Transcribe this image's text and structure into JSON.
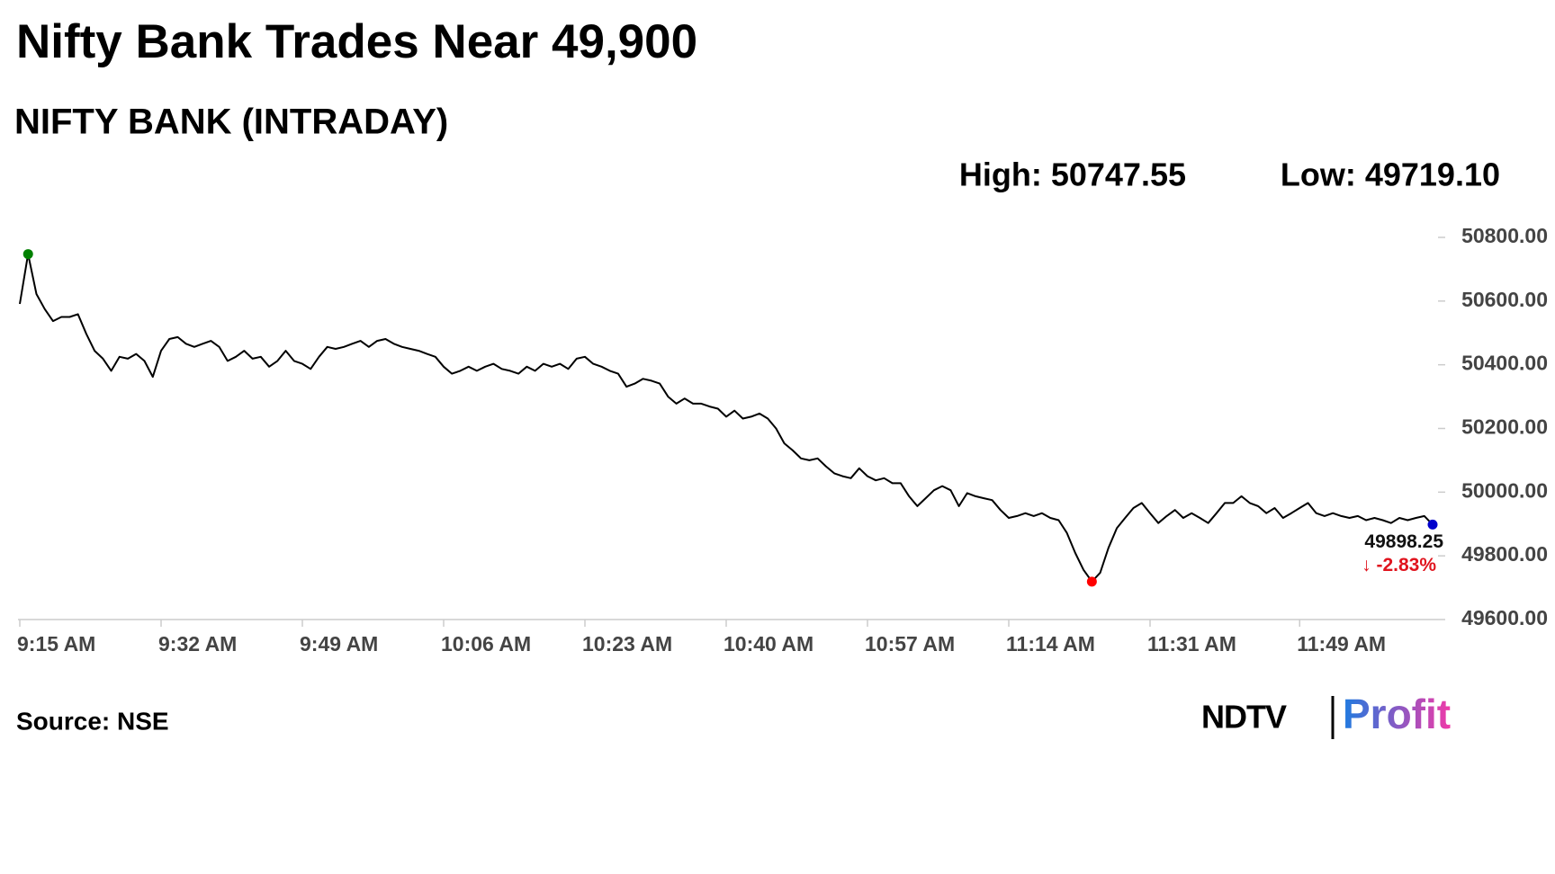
{
  "chart_data": {
    "type": "line",
    "title": "Nifty Bank Trades Near 49,900",
    "subtitle": "NIFTY BANK (INTRADAY)",
    "high_label": "High: 50747.55",
    "low_label": "Low: 49719.10",
    "last_label": "49898.25",
    "change_label": "↓ -2.83%",
    "source": "Source: NSE",
    "logo": {
      "left": "NDTV",
      "right": "Profit"
    },
    "categories": [
      "9:15 AM",
      "9:16 AM",
      "9:17 AM",
      "9:18 AM",
      "9:19 AM",
      "9:20 AM",
      "9:21 AM",
      "9:22 AM",
      "9:23 AM",
      "9:24 AM",
      "9:25 AM",
      "9:26 AM",
      "9:27 AM",
      "9:28 AM",
      "9:29 AM",
      "9:30 AM",
      "9:31 AM",
      "9:32 AM",
      "9:33 AM",
      "9:34 AM",
      "9:35 AM",
      "9:36 AM",
      "9:37 AM",
      "9:38 AM",
      "9:39 AM",
      "9:40 AM",
      "9:41 AM",
      "9:42 AM",
      "9:43 AM",
      "9:44 AM",
      "9:45 AM",
      "9:46 AM",
      "9:47 AM",
      "9:48 AM",
      "9:49 AM",
      "9:50 AM",
      "9:51 AM",
      "9:52 AM",
      "9:53 AM",
      "9:54 AM",
      "9:55 AM",
      "9:56 AM",
      "9:57 AM",
      "9:58 AM",
      "9:59 AM",
      "10:00 AM",
      "10:01 AM",
      "10:02 AM",
      "10:03 AM",
      "10:04 AM",
      "10:05 AM",
      "10:06 AM",
      "10:07 AM",
      "10:08 AM",
      "10:09 AM",
      "10:10 AM",
      "10:11 AM",
      "10:12 AM",
      "10:13 AM",
      "10:14 AM",
      "10:15 AM",
      "10:16 AM",
      "10:17 AM",
      "10:18 AM",
      "10:19 AM",
      "10:20 AM",
      "10:21 AM",
      "10:22 AM",
      "10:23 AM",
      "10:24 AM",
      "10:25 AM",
      "10:26 AM",
      "10:27 AM",
      "10:28 AM",
      "10:29 AM",
      "10:30 AM",
      "10:31 AM",
      "10:32 AM",
      "10:33 AM",
      "10:34 AM",
      "10:35 AM",
      "10:36 AM",
      "10:37 AM",
      "10:38 AM",
      "10:39 AM",
      "10:40 AM",
      "10:41 AM",
      "10:42 AM",
      "10:43 AM",
      "10:44 AM",
      "10:45 AM",
      "10:46 AM",
      "10:47 AM",
      "10:48 AM",
      "10:49 AM",
      "10:50 AM",
      "10:51 AM",
      "10:52 AM",
      "10:53 AM",
      "10:54 AM",
      "10:55 AM",
      "10:56 AM",
      "10:57 AM",
      "10:58 AM",
      "10:59 AM",
      "11:00 AM",
      "11:01 AM",
      "11:02 AM",
      "11:03 AM",
      "11:04 AM",
      "11:05 AM",
      "11:06 AM",
      "11:07 AM",
      "11:08 AM",
      "11:09 AM",
      "11:10 AM",
      "11:11 AM",
      "11:12 AM",
      "11:13 AM",
      "11:14 AM",
      "11:15 AM",
      "11:16 AM",
      "11:17 AM",
      "11:18 AM",
      "11:19 AM",
      "11:20 AM",
      "11:21 AM",
      "11:22 AM",
      "11:23 AM",
      "11:24 AM",
      "11:25 AM",
      "11:26 AM",
      "11:27 AM",
      "11:28 AM",
      "11:29 AM",
      "11:30 AM",
      "11:31 AM",
      "11:32 AM",
      "11:33 AM",
      "11:34 AM",
      "11:35 AM",
      "11:36 AM",
      "11:37 AM",
      "11:38 AM",
      "11:39 AM",
      "11:40 AM",
      "11:41 AM",
      "11:42 AM",
      "11:43 AM",
      "11:44 AM",
      "11:45 AM",
      "11:46 AM",
      "11:47 AM",
      "11:48 AM",
      "11:49 AM",
      "11:50 AM",
      "11:51 AM",
      "11:52 AM",
      "11:53 AM",
      "11:54 AM",
      "11:55 AM",
      "11:56 AM",
      "11:57 AM",
      "11:58 AM",
      "11:59 AM",
      "12:00 PM",
      "12:01 PM",
      "12:02 PM",
      "12:03 PM",
      "12:04 PM",
      "12:05 PM"
    ],
    "series": [
      {
        "name": "NIFTY BANK",
        "color": "#000000",
        "values": [
          50591,
          50747.55,
          50622,
          50575,
          50537,
          50550,
          50550,
          50559,
          50497,
          50444,
          50419,
          50381,
          50425,
          50419,
          50434,
          50412,
          50362,
          50444,
          50481,
          50487,
          50466,
          50456,
          50466,
          50475,
          50456,
          50412,
          50425,
          50444,
          50419,
          50425,
          50394,
          50412,
          50444,
          50412,
          50403,
          50387,
          50425,
          50456,
          50450,
          50456,
          50466,
          50475,
          50456,
          50475,
          50481,
          50466,
          50456,
          50450,
          50444,
          50434,
          50425,
          50394,
          50372,
          50381,
          50394,
          50381,
          50394,
          50403,
          50387,
          50381,
          50372,
          50394,
          50381,
          50403,
          50394,
          50403,
          50387,
          50419,
          50425,
          50403,
          50394,
          50381,
          50372,
          50331,
          50341,
          50356,
          50350,
          50341,
          50300,
          50278,
          50294,
          50278,
          50278,
          50269,
          50262,
          50237,
          50256,
          50231,
          50237,
          50247,
          50231,
          50200,
          50153,
          50131,
          50106,
          50100,
          50106,
          50081,
          50059,
          50050,
          50044,
          50075,
          50050,
          50037,
          50044,
          50028,
          50028,
          49987,
          49956,
          49981,
          50006,
          50019,
          50006,
          49956,
          49997,
          49987,
          49981,
          49975,
          49944,
          49919,
          49925,
          49934,
          49925,
          49934,
          49919,
          49912,
          49872,
          49809,
          49756,
          49719.1,
          49747,
          49825,
          49887,
          49919,
          49950,
          49966,
          49934,
          49903,
          49925,
          49944,
          49919,
          49934,
          49919,
          49903,
          49934,
          49966,
          49966,
          49987,
          49966,
          49956,
          49934,
          49950,
          49919,
          49934,
          49950,
          49966,
          49934,
          49925,
          49934,
          49925,
          49919,
          49925,
          49912,
          49919,
          49912,
          49903,
          49919,
          49912,
          49919,
          49925,
          49898.25
        ]
      }
    ],
    "markers": [
      {
        "index": 1,
        "color": "#008000"
      },
      {
        "index": 129,
        "color": "#ff0000"
      },
      {
        "index": 170,
        "color": "#0000cc"
      }
    ],
    "xticks": [
      "9:15 AM",
      "9:32 AM",
      "9:49 AM",
      "10:06 AM",
      "10:23 AM",
      "10:40 AM",
      "10:57 AM",
      "11:14 AM",
      "11:31 AM",
      "11:49 AM"
    ],
    "ylim": [
      49600,
      50800
    ],
    "yticks": [
      {
        "value": 49600,
        "label": "49600.00"
      },
      {
        "value": 49800,
        "label": "49800.00"
      },
      {
        "value": 50000,
        "label": "50000.00"
      },
      {
        "value": 50200,
        "label": "50200.00"
      },
      {
        "value": 50400,
        "label": "50400.00"
      },
      {
        "value": 50600,
        "label": "50600.00"
      },
      {
        "value": 50800,
        "label": "50800.00"
      }
    ],
    "grid": false
  }
}
